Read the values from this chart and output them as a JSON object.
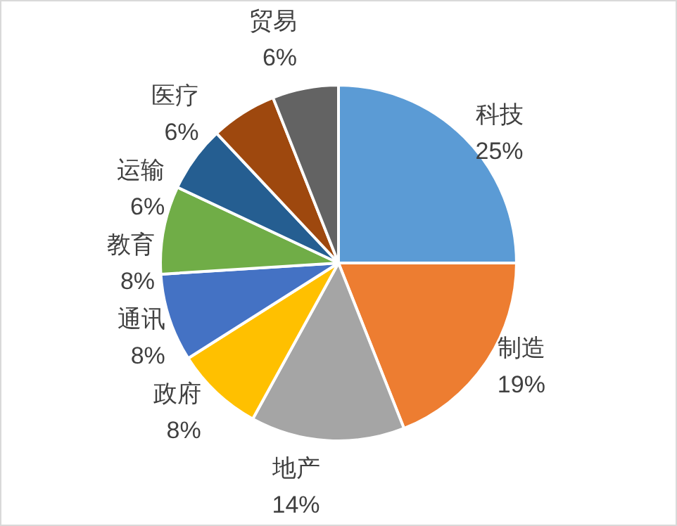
{
  "chart_data": {
    "type": "pie",
    "categories": [
      "科技",
      "制造",
      "地产",
      "政府",
      "通讯",
      "教育",
      "运输",
      "医疗",
      "贸易"
    ],
    "values": [
      25,
      19,
      14,
      8,
      8,
      8,
      6,
      6,
      6
    ],
    "value_labels": [
      "25%",
      "19%",
      "14%",
      "8%",
      "8%",
      "8%",
      "6%",
      "6%",
      "6%"
    ],
    "colors": [
      "#5b9bd5",
      "#ed7d31",
      "#a5a5a5",
      "#ffc000",
      "#4472c4",
      "#70ad47",
      "#255e91",
      "#9e480e",
      "#636363"
    ],
    "legend": false
  }
}
